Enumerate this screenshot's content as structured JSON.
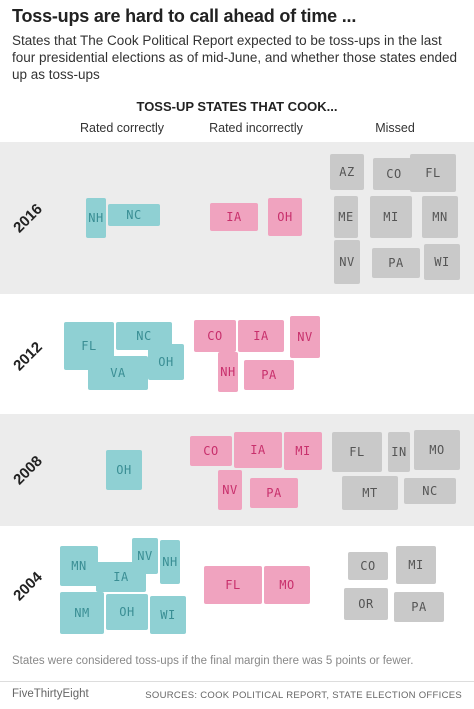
{
  "header": {
    "title": "Toss-ups are hard to call ahead of time ...",
    "subtitle": "States that The Cook Political Report expected to be toss-ups in the last four presidential elections as of mid-June, and whether those states ended up as toss-ups"
  },
  "chart_data": {
    "type": "table",
    "title": "TOSS-UP STATES THAT COOK...",
    "columns": [
      "Rated correctly",
      "Rated incorrectly",
      "Missed"
    ],
    "colors": {
      "rated_correctly": "#8fd0d3",
      "rated_incorrectly": "#f0a3bf",
      "missed": "#c9c9c9",
      "band": "#ececec"
    },
    "rows": [
      {
        "year": "2016",
        "correct": [
          "NH",
          "NC"
        ],
        "incorrect": [
          "IA",
          "OH"
        ],
        "missed": [
          "AZ",
          "CO",
          "FL",
          "ME",
          "MI",
          "MN",
          "NV",
          "PA",
          "WI"
        ]
      },
      {
        "year": "2012",
        "correct": [
          "FL",
          "NC",
          "VA",
          "OH"
        ],
        "incorrect": [
          "CO",
          "IA",
          "NV",
          "NH",
          "PA"
        ],
        "missed": []
      },
      {
        "year": "2008",
        "correct": [
          "OH"
        ],
        "incorrect": [
          "CO",
          "IA",
          "MI",
          "NV",
          "PA"
        ],
        "missed": [
          "FL",
          "IN",
          "MO",
          "MT",
          "NC"
        ]
      },
      {
        "year": "2004",
        "correct": [
          "MN",
          "NV",
          "IA",
          "NH",
          "NM",
          "OH",
          "WI"
        ],
        "incorrect": [
          "FL",
          "MO"
        ],
        "missed": [
          "CO",
          "MI",
          "OR",
          "PA"
        ]
      }
    ]
  },
  "footer": {
    "note": "States were considered toss-ups if the final margin there was 5 points or fewer.",
    "brand": "FiveThirtyEight",
    "sources": "SOURCES: COOK POLITICAL REPORT, STATE ELECTION OFFICES"
  }
}
